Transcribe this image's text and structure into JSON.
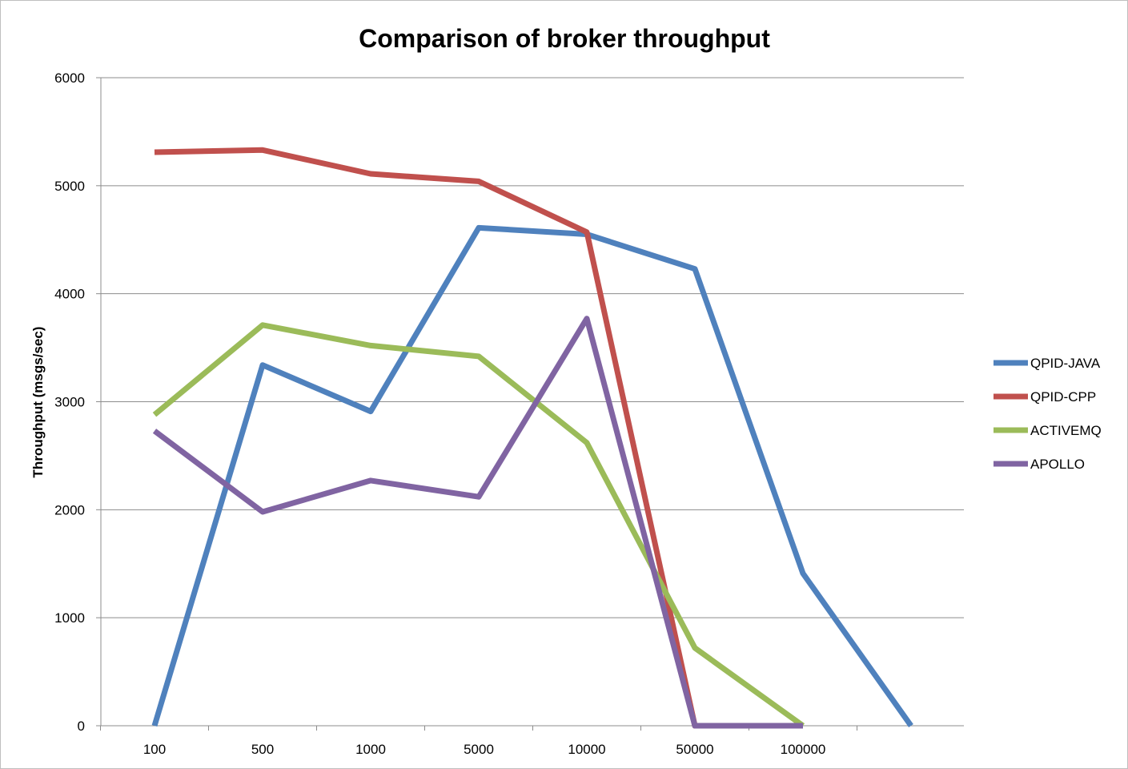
{
  "chart_data": {
    "type": "line",
    "title": "Comparison of broker throughput",
    "xlabel": "",
    "ylabel": "Throughput (msgs/sec)",
    "ylim": [
      0,
      6000
    ],
    "yticks": [
      0,
      1000,
      2000,
      3000,
      4000,
      5000,
      6000
    ],
    "categories": [
      "100",
      "500",
      "1000",
      "5000",
      "10000",
      "50000",
      "100000",
      ""
    ],
    "grid": "horizontal",
    "legend_position": "right",
    "series": [
      {
        "name": "QPID-JAVA",
        "color": "#4f81bd",
        "values": [
          0,
          3340,
          2910,
          4610,
          4550,
          4230,
          1410,
          0
        ]
      },
      {
        "name": "QPID-CPP",
        "color": "#c0504d",
        "values": [
          5310,
          5330,
          5110,
          5040,
          4570,
          0,
          0,
          null
        ]
      },
      {
        "name": "ACTIVEMQ",
        "color": "#9bbb59",
        "values": [
          2880,
          3710,
          3520,
          3420,
          2620,
          720,
          0,
          null
        ]
      },
      {
        "name": "APOLLO",
        "color": "#8064a2",
        "values": [
          2730,
          1980,
          2270,
          2120,
          3770,
          0,
          0,
          null
        ]
      }
    ]
  }
}
